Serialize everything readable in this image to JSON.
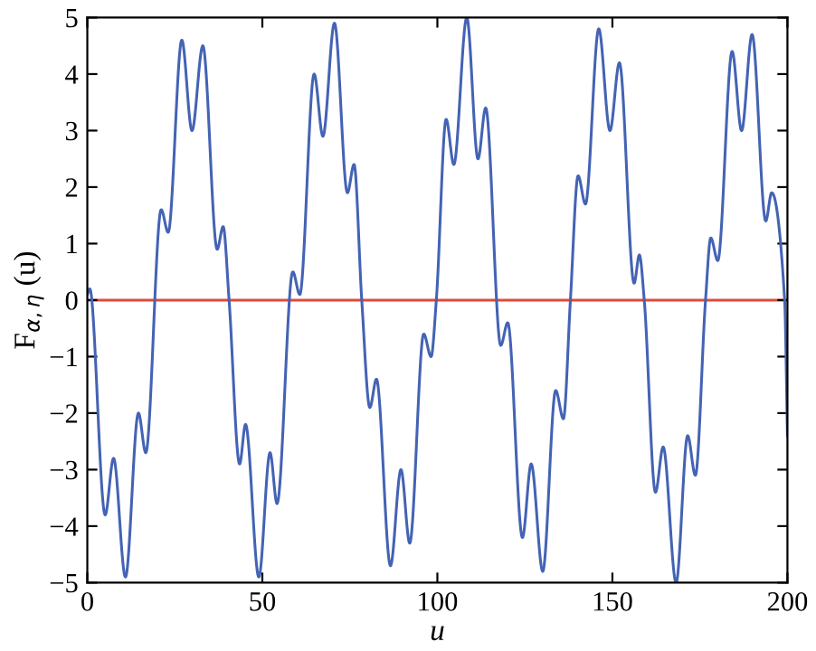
{
  "chart_data": {
    "type": "line",
    "xlabel": "u",
    "ylabel": "F$_{α,η}$ (u)",
    "xlim": [
      0,
      200
    ],
    "ylim": [
      -5,
      5
    ],
    "xticks": [
      0,
      50,
      100,
      150,
      200
    ],
    "yticks": [
      -5,
      -4,
      -3,
      -2,
      -1,
      0,
      1,
      2,
      3,
      4,
      5
    ],
    "grid": false,
    "legend": false,
    "marker": "none",
    "line_style": "solid",
    "ref_lines": [
      {
        "axis": "y",
        "value": 0,
        "color": "#e04a3a"
      }
    ],
    "series": [
      {
        "color": "#4463b4",
        "x": [
          0,
          0.7,
          5.1,
          7.5,
          10.9,
          14.6,
          16.7,
          21.1,
          23.1,
          27.0,
          29.9,
          33.0,
          37.1,
          38.8,
          40.5,
          43.5,
          45.2,
          49.0,
          52.2,
          54.2,
          58.7,
          60.7,
          64.8,
          67.3,
          70.6,
          74.3,
          76.2,
          78.4,
          80.7,
          82.6,
          86.6,
          89.6,
          92.1,
          96.1,
          98.2,
          99.7,
          102.5,
          104.7,
          108.4,
          111.6,
          113.8,
          118.1,
          120.1,
          124.3,
          126.8,
          130.1,
          133.8,
          136.0,
          138.0,
          140.2,
          142.3,
          146.1,
          149.3,
          152.0,
          156.2,
          157.7,
          159.1,
          162.3,
          164.5,
          168.2,
          171.5,
          173.7,
          176.6,
          178.1,
          180.1,
          184.2,
          186.9,
          189.9,
          193.8,
          195.5,
          199.2,
          200
        ],
        "values": [
          0.1,
          0.2,
          -3.8,
          -2.8,
          -4.9,
          -2.0,
          -2.7,
          1.6,
          1.2,
          4.6,
          3.0,
          4.5,
          0.9,
          1.3,
          0,
          -2.9,
          -2.2,
          -4.9,
          -2.7,
          -3.6,
          0.5,
          0.1,
          4.0,
          2.9,
          4.9,
          1.9,
          2.4,
          0,
          -1.9,
          -1.4,
          -4.7,
          -3.0,
          -4.3,
          -0.6,
          -1.0,
          0,
          3.2,
          2.4,
          5.0,
          2.5,
          3.4,
          -0.8,
          -0.4,
          -4.2,
          -2.9,
          -4.8,
          -1.6,
          -2.1,
          0,
          2.2,
          1.7,
          4.8,
          3.0,
          4.2,
          0.3,
          0.8,
          0,
          -3.4,
          -2.6,
          -5.0,
          -2.4,
          -3.1,
          0,
          1.1,
          0.7,
          4.4,
          3.0,
          4.7,
          1.4,
          1.9,
          0,
          -2.4
        ]
      }
    ]
  }
}
